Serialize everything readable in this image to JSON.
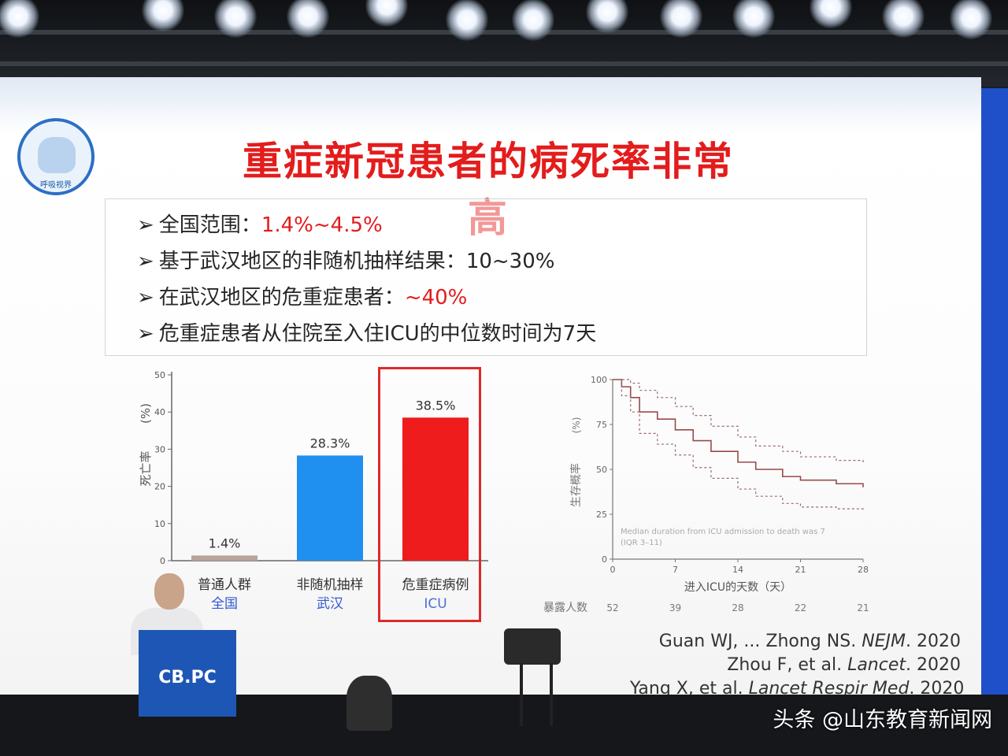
{
  "slide": {
    "title": "重症新冠患者的病死率非常高",
    "logo_text": "呼吸视界",
    "bullets": [
      {
        "label": "全国范围：",
        "value": "1.4%~4.5%",
        "highlight": true
      },
      {
        "label": "基于武汉地区的非随机抽样结果：",
        "value": "10~30%",
        "highlight": false
      },
      {
        "label": "在武汉地区的危重症患者：",
        "value": "~40%",
        "highlight": true
      },
      {
        "label": "危重症患者从住院至入住ICU的中位数时间为7天",
        "value": "",
        "highlight": false
      }
    ],
    "arrow": "➢",
    "references": [
      {
        "text": "Guan WJ, ... Zhong NS. ",
        "journal": "NEJM",
        "year": ". 2020"
      },
      {
        "text": "Zhou F, et al. ",
        "journal": "Lancet",
        "year": ". 2020"
      },
      {
        "text": "Yang X, et al. ",
        "journal": "Lancet Respir Med",
        "year": ". 2020"
      }
    ],
    "podium_logo": "CB.PC"
  },
  "chart_data": [
    {
      "type": "bar",
      "ylabel": "死亡率",
      "yunit": "(%)",
      "ylim": [
        0,
        50
      ],
      "yticks": [
        0,
        10,
        20,
        30,
        40,
        50
      ],
      "categories": [
        {
          "name": "普通人群",
          "group": "全国",
          "value": 1.4,
          "label": "1.4%",
          "color": "#b8a49a"
        },
        {
          "name": "非随机抽样",
          "group": "武汉",
          "value": 28.3,
          "label": "28.3%",
          "color": "#1f8ff0"
        },
        {
          "name": "危重症病例",
          "group": "ICU",
          "value": 38.5,
          "label": "38.5%",
          "color": "#ee1c1c"
        }
      ]
    },
    {
      "type": "line",
      "xlabel": "进入ICU的天数（天）",
      "ylabel": "生存概率",
      "yunit": "(%)",
      "xlim": [
        0,
        28
      ],
      "ylim": [
        0,
        100
      ],
      "xticks": [
        0,
        7,
        14,
        21,
        28
      ],
      "yticks": [
        0,
        25,
        50,
        75,
        100
      ],
      "annotation": [
        "Median duration from ICU admission to death was 7",
        "(IQR 3–11)"
      ],
      "risk_label": "暴露人数",
      "risk_counts": [
        "52",
        "39",
        "28",
        "22",
        "21"
      ],
      "series": [
        {
          "style": "solid",
          "color": "#9a4a4a",
          "x": [
            0,
            1,
            2,
            3,
            5,
            7,
            9,
            11,
            14,
            16,
            19,
            21,
            25,
            28
          ],
          "y": [
            100,
            96,
            90,
            82,
            78,
            72,
            66,
            60,
            54,
            50,
            46,
            44,
            42,
            40
          ]
        },
        {
          "style": "dashed",
          "color": "#9a6a6a",
          "x": [
            0,
            1,
            2,
            3,
            5,
            7,
            9,
            11,
            14,
            16,
            19,
            21,
            25,
            28
          ],
          "y": [
            100,
            100,
            98,
            94,
            90,
            85,
            80,
            74,
            68,
            63,
            60,
            57,
            55,
            53
          ]
        },
        {
          "style": "dashed",
          "color": "#9a6a6a",
          "x": [
            0,
            1,
            2,
            3,
            5,
            7,
            9,
            11,
            14,
            16,
            19,
            21,
            25,
            28
          ],
          "y": [
            100,
            91,
            82,
            70,
            64,
            58,
            51,
            45,
            39,
            35,
            31,
            29,
            28,
            27
          ]
        }
      ]
    }
  ],
  "watermark": "头条 @山东教育新闻网"
}
